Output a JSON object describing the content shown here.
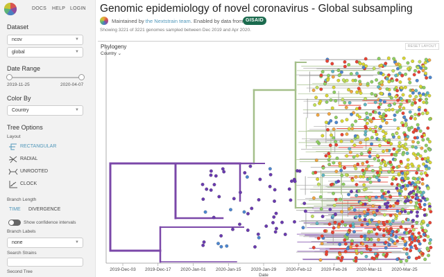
{
  "nav": {
    "docs": "DOCS",
    "help": "HELP",
    "login": "LOGIN"
  },
  "sidebar": {
    "dataset": {
      "title": "Dataset",
      "value1": "ncov",
      "value2": "global"
    },
    "date_range": {
      "title": "Date Range",
      "start": "2019-11-25",
      "end": "2020-04-07"
    },
    "color_by": {
      "title": "Color By",
      "value": "Country"
    },
    "tree_options": {
      "title": "Tree Options",
      "layout_label": "Layout",
      "layouts": [
        "RECTANGULAR",
        "RADIAL",
        "UNROOTED",
        "CLOCK"
      ],
      "branch_length_label": "Branch Length",
      "branch_time": "TIME",
      "branch_divergence": "DIVERGENCE",
      "confidence_label": "Show confidence intervals",
      "branch_labels_label": "Branch Labels",
      "branch_labels_value": "none",
      "search_label": "Search Strains",
      "second_tree_label": "Second Tree"
    }
  },
  "header": {
    "title": "Genomic epidemiology of novel coronavirus - Global subsampling",
    "maintained_prefix": "Maintained by ",
    "maintained_link": "the Nextstrain team",
    "enabled_text": ". Enabled by data from",
    "gisaid": "GISAID",
    "summary": "Showing 3221 of 3221 genomes sampled between Dec 2019 and Apr 2020."
  },
  "panel": {
    "title": "Phylogeny",
    "color_label": "Country",
    "reset": "RESET LAYOUT",
    "x_ticks": [
      "2019-Dec-03",
      "2019-Dec-17",
      "2020-Jan-01",
      "2020-Jan-15",
      "2020-Jan-29",
      "2020-Feb-12",
      "2020-Feb-26",
      "2020-Mar-11",
      "2020-Mar-25"
    ],
    "x_label": "Date"
  },
  "colors": {
    "accent": "#5097ba",
    "purple_clade": "#7a47a8",
    "green_clade": "#a4bf8a",
    "tips": [
      "#d8d633",
      "#8fcf62",
      "#e94334",
      "#4c86d0",
      "#f2a640",
      "#5fb6c2",
      "#6a3bb0",
      "#c2e05b"
    ]
  }
}
